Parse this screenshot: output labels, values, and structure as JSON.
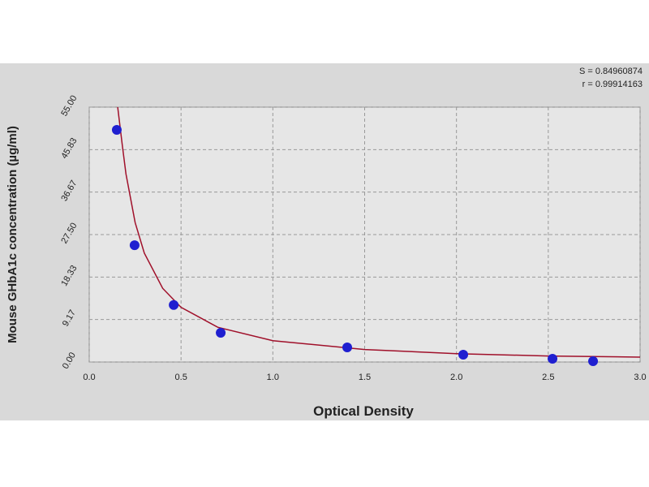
{
  "chart_data": {
    "type": "scatter",
    "xlabel": "Optical Density",
    "ylabel": "Mouse GHbA1c concentration (µg/ml)",
    "annotations": [
      "S = 0.84960874",
      "r = 0.99914163"
    ],
    "xlim": [
      0,
      3
    ],
    "ylim": [
      0,
      55
    ],
    "xticks": [
      {
        "value": 0,
        "label": "0.0"
      },
      0.5,
      {
        "value": 1,
        "label": "1.0"
      },
      1.5,
      {
        "value": 2,
        "label": "2.0"
      },
      2.5,
      {
        "value": 3,
        "label": "3.0"
      }
    ],
    "yticks": [
      {
        "value": 0,
        "label": "0.00"
      },
      9.17,
      18.33,
      {
        "value": 27.5,
        "label": "27.50"
      },
      36.67,
      45.83,
      {
        "value": 55,
        "label": "55.00"
      }
    ],
    "grid": true,
    "series": [
      {
        "color": "#1f1fd0",
        "x": [
          0.15,
          0.247,
          0.46,
          0.716,
          1.405,
          2.037,
          2.523,
          2.744
        ],
        "values": [
          50.1,
          25.2,
          12.3,
          6.3,
          3.15,
          1.58,
          0.7,
          0.18
        ]
      },
      {
        "color": "#a0102a",
        "x": [
          0.155,
          0.18,
          0.2,
          0.25,
          0.3,
          0.4,
          0.5,
          0.7,
          1.0,
          1.5,
          2.0,
          2.5,
          3.0
        ],
        "values": [
          55,
          46.8,
          40.6,
          30.1,
          23.5,
          15.9,
          11.8,
          7.5,
          4.6,
          2.7,
          1.8,
          1.3,
          1.05
        ]
      }
    ]
  }
}
